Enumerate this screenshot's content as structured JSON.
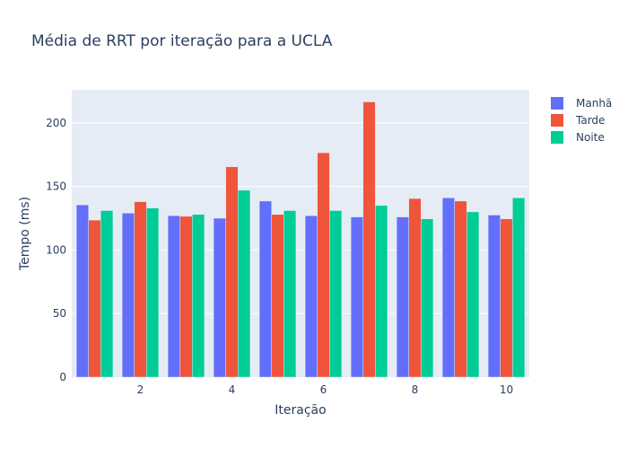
{
  "chart_data": {
    "type": "bar",
    "title": "Média de RRT por iteração para a UCLA",
    "xlabel": "Iteração",
    "ylabel": "Tempo (ms)",
    "x": [
      1,
      2,
      3,
      4,
      5,
      6,
      7,
      8,
      9,
      10
    ],
    "x_ticks": [
      2,
      4,
      6,
      8,
      10
    ],
    "y_ticks": [
      0,
      50,
      100,
      150,
      200
    ],
    "ylim": [
      0,
      226
    ],
    "grid": true,
    "legend_position": "top-right",
    "series": [
      {
        "name": "Manhã",
        "color": "#636efa",
        "values": [
          135.5,
          129,
          127,
          125,
          138.5,
          127,
          126,
          126,
          141,
          127.5
        ]
      },
      {
        "name": "Tarde",
        "color": "#ef553b",
        "values": [
          123.5,
          138,
          126.5,
          165.5,
          128,
          176.5,
          216.5,
          140.5,
          138.5,
          124.5
        ]
      },
      {
        "name": "Noite",
        "color": "#00cc96",
        "values": [
          131,
          133,
          128,
          147,
          131,
          131,
          135,
          124.5,
          130,
          141
        ]
      }
    ]
  }
}
